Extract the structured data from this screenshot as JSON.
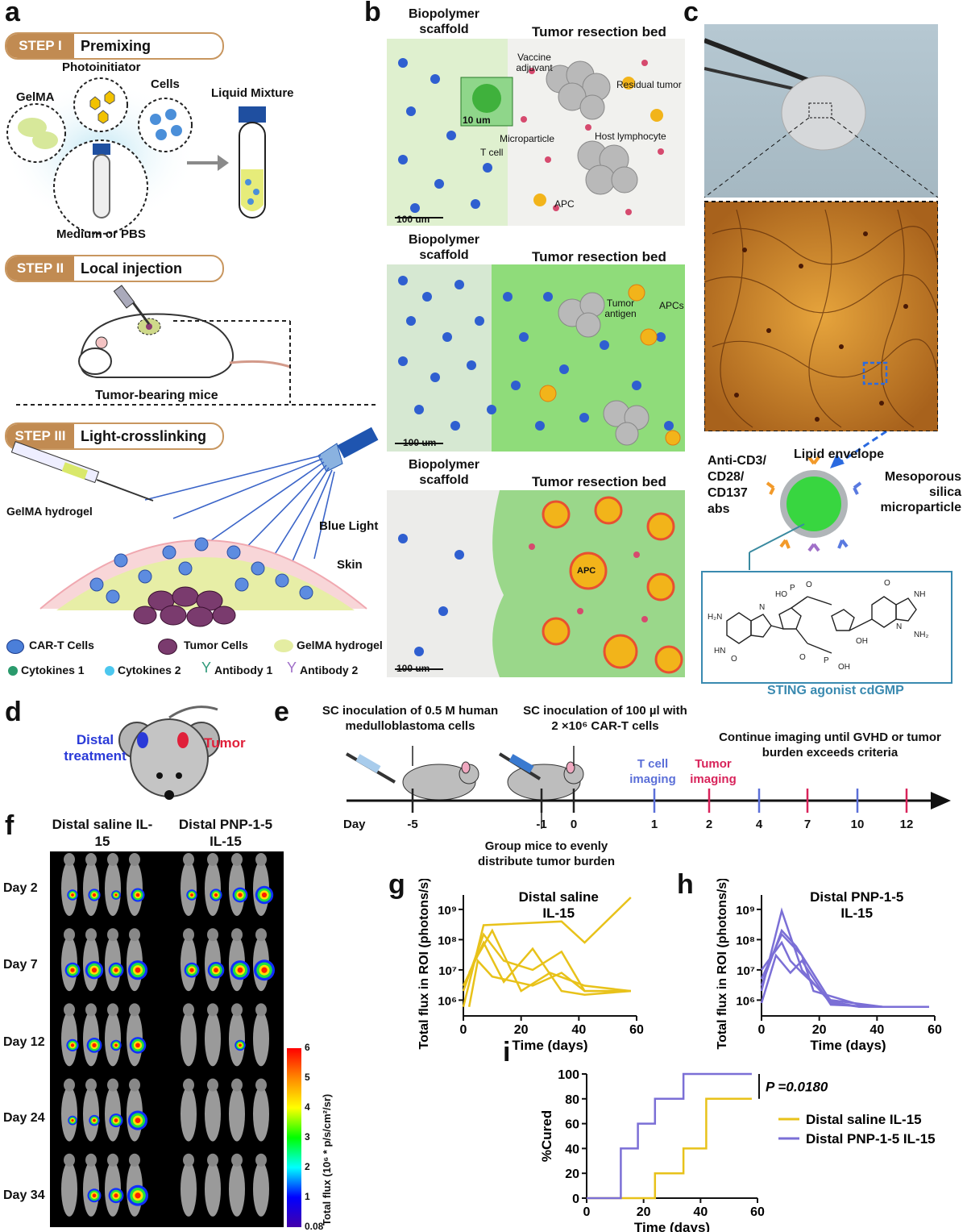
{
  "panels": {
    "a": "a",
    "b": "b",
    "c": "c",
    "d": "d",
    "e": "e",
    "f": "f",
    "g": "g",
    "h": "h",
    "i": "i"
  },
  "panel_a": {
    "step1_tag": "STEP I",
    "step1_text": "Premixing",
    "step2_tag": "STEP II",
    "step2_text": "Local injection",
    "step3_tag": "STEP III",
    "step3_text": "Light-crosslinking",
    "photoinitiator": "Photoinitiator",
    "gelma": "GelMA",
    "cells": "Cells",
    "liquid_mixture": "Liquid Mixture",
    "medium": "Medium or PBS",
    "tumor_bearing": "Tumor-bearing mice",
    "gelma_hydrogel": "GelMA hydrogel",
    "blue_light": "Blue Light",
    "skin": "Skin",
    "legend": [
      "CAR-T Cells",
      "Tumor Cells",
      "GelMA hydrogel",
      "Cytokines 1",
      "Cytokines 2",
      "Antibody 1",
      "Antibody 2"
    ]
  },
  "panel_b": {
    "scaffold": "Biopolymer scaffold",
    "bed": "Tumor resection bed",
    "vaccine": "Vaccine adjuvant",
    "scale10": "10 um",
    "residual": "Residual tumor",
    "microparticle": "Microparticle",
    "host": "Host lymphocyte",
    "tcell": "T cell",
    "apc": "APC",
    "scale100": "100 um",
    "tumor_antigen": "Tumor antigen",
    "apcs": "APCs"
  },
  "panel_c": {
    "lipid": "Lipid envelope",
    "meso": "Mesoporous silica microparticle",
    "antibodies": "Anti-CD3/ CD28/ CD137 abs",
    "sting": "STING agonist cdGMP"
  },
  "panel_d": {
    "distal": "Distal treatment",
    "tumor": "Tumor"
  },
  "panel_e": {
    "inoc1": "SC inoculation of 0.5 M human medulloblastoma cells",
    "inoc2": "SC inoculation of 100 µl with 2 ×10⁶ CAR-T cells",
    "continue": "Continue imaging until GVHD or tumor burden exceeds criteria",
    "tcell_imaging": "T cell imaging",
    "tumor_imaging": "Tumor imaging",
    "group": "Group mice to evenly distribute tumor burden",
    "day_label": "Day",
    "days": [
      "-5",
      "-1",
      "0",
      "1",
      "2",
      "4",
      "7",
      "10",
      "12"
    ],
    "day_colors": [
      "#222",
      "#222",
      "#222",
      "#5b6fd8",
      "#d8235a",
      "#5b6fd8",
      "#d8235a",
      "#5b6fd8",
      "#d8235a"
    ]
  },
  "panel_f": {
    "col1": "Distal saline IL-15",
    "col2": "Distal PNP-1-5 IL-15",
    "rows": [
      "Day 2",
      "Day 7",
      "Day 12",
      "Day 24",
      "Day 34"
    ],
    "colorbar_label": "Total flux (10⁶ * p/s/cm²/sr)",
    "colorbar_ticks": [
      "6",
      "5",
      "4",
      "3",
      "2",
      "1",
      "0.08"
    ],
    "signal_saline": [
      [
        0.3,
        0.4,
        0.2,
        0.5
      ],
      [
        0.6,
        0.8,
        0.6,
        0.9
      ],
      [
        0.4,
        0.6,
        0.3,
        0.7
      ],
      [
        0.2,
        0.3,
        0.5,
        0.9
      ],
      [
        0,
        0.5,
        0.6,
        1.0
      ]
    ],
    "signal_pnp": [
      [
        0.3,
        0.4,
        0.6,
        0.8
      ],
      [
        0.6,
        0.7,
        0.9,
        1.0
      ],
      [
        0,
        0,
        0.3,
        0
      ],
      [
        0,
        0,
        0,
        0
      ],
      [
        0,
        0,
        0,
        0
      ]
    ]
  },
  "chart_data": [
    {
      "type": "line",
      "panel": "g",
      "title": "Distal saline IL-15",
      "xlabel": "Time (days)",
      "ylabel": "Total flux in ROI (photons/s)",
      "xlim": [
        0,
        60
      ],
      "ylim": [
        300000,
        3000000000
      ],
      "yscale": "log",
      "xticks": [
        "0",
        "20",
        "40",
        "60"
      ],
      "yticks": [
        "10⁶",
        "10⁷",
        "10⁸",
        "10⁹"
      ],
      "color": "#e8c21a",
      "series": [
        {
          "x": [
            0,
            7,
            34,
            42,
            58
          ],
          "y": [
            600000,
            300000000,
            400000000,
            80000000,
            2500000000
          ]
        },
        {
          "x": [
            0,
            7,
            14,
            24,
            34,
            42,
            58
          ],
          "y": [
            2000000,
            150000000,
            20000000,
            10000000,
            40000000,
            2000000,
            2000000
          ]
        },
        {
          "x": [
            2,
            7,
            14,
            24,
            34,
            42,
            58
          ],
          "y": [
            8000000,
            80000000,
            4000000,
            50000000,
            2000000,
            1500000,
            2000000
          ]
        },
        {
          "x": [
            2,
            5,
            10,
            24,
            34,
            42,
            58
          ],
          "y": [
            600000,
            20000000,
            6000000,
            3000000,
            8000000,
            2000000,
            2000000
          ]
        },
        {
          "x": [
            0,
            5,
            10,
            20,
            30,
            42,
            58
          ],
          "y": [
            3000000,
            30000000,
            200000000,
            2000000,
            8000000,
            3000000,
            2000000
          ]
        }
      ]
    },
    {
      "type": "line",
      "panel": "h",
      "title": "Distal PNP-1-5 IL-15",
      "xlabel": "Time (days)",
      "ylabel": "Total flux in ROI (photons/s)",
      "xlim": [
        0,
        60
      ],
      "ylim": [
        300000,
        3000000000
      ],
      "yscale": "log",
      "xticks": [
        "0",
        "20",
        "40",
        "60"
      ],
      "yticks": [
        "10⁶",
        "10⁷",
        "10⁸",
        "10⁹"
      ],
      "color": "#7b6fd6",
      "series": [
        {
          "x": [
            0,
            7,
            14,
            24,
            34,
            42,
            58
          ],
          "y": [
            2000000,
            900000000,
            10000000,
            800000,
            600000,
            600000,
            600000
          ]
        },
        {
          "x": [
            0,
            7,
            12,
            24,
            34,
            42,
            58
          ],
          "y": [
            3000000,
            200000000,
            60000000,
            900000,
            600000,
            600000,
            600000
          ]
        },
        {
          "x": [
            0,
            7,
            14,
            18,
            34,
            42,
            58
          ],
          "y": [
            5000000,
            150000000,
            30000000,
            2000000,
            700000,
            600000,
            600000
          ]
        },
        {
          "x": [
            0,
            7,
            10,
            14,
            24,
            42,
            58
          ],
          "y": [
            10000000,
            80000000,
            20000000,
            8000000,
            1000000,
            600000,
            600000
          ]
        },
        {
          "x": [
            0,
            5,
            10,
            14,
            24,
            42,
            58
          ],
          "y": [
            800000,
            30000000,
            8000000,
            20000000,
            700000,
            600000,
            600000
          ]
        }
      ]
    },
    {
      "type": "line",
      "panel": "i",
      "xlabel": "Time (days)",
      "ylabel": "%Cured",
      "xlim": [
        0,
        60
      ],
      "ylim": [
        0,
        100
      ],
      "xticks": [
        "0",
        "20",
        "40",
        "60"
      ],
      "yticks": [
        "0",
        "20",
        "40",
        "60",
        "80",
        "100"
      ],
      "pvalue": "P =0.0180",
      "series": [
        {
          "name": "Distal saline IL-15",
          "color": "#e8c21a",
          "x": [
            0,
            24,
            24,
            34,
            34,
            42,
            42,
            58
          ],
          "y": [
            0,
            0,
            20,
            20,
            40,
            40,
            80,
            80
          ]
        },
        {
          "name": "Distal PNP-1-5 IL-15",
          "color": "#7b6fd6",
          "x": [
            0,
            12,
            12,
            18,
            18,
            24,
            24,
            34,
            34,
            58
          ],
          "y": [
            0,
            0,
            40,
            40,
            60,
            60,
            80,
            80,
            100,
            100
          ]
        }
      ]
    }
  ]
}
